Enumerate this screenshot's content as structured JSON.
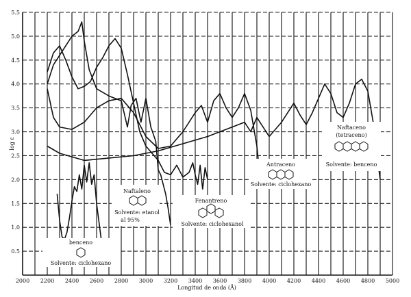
{
  "chart_data": {
    "type": "line",
    "xlabel": "Longitud de onda (Å)",
    "ylabel": "log ε",
    "xlim": [
      2000,
      5000
    ],
    "ylim": [
      0,
      5.5
    ],
    "x_ticks": [
      "2000",
      "2200",
      "2400",
      "2600",
      "2800",
      "3000",
      "3200",
      "3400",
      "3600",
      "3800",
      "4000",
      "4200",
      "4400",
      "4600",
      "4800",
      "5000"
    ],
    "y_ticks": [
      "0.5",
      "1.0",
      "1.5",
      "2.0",
      "2.5",
      "3.0",
      "3.5",
      "4.0",
      "4.5",
      "5.0",
      "5.5"
    ],
    "grid": true,
    "series": [
      {
        "name": "benceno",
        "points": [
          [
            2280,
            1.7
          ],
          [
            2300,
            1.15
          ],
          [
            2320,
            0.8
          ],
          [
            2340,
            0.75
          ],
          [
            2360,
            0.9
          ],
          [
            2380,
            1.2
          ],
          [
            2400,
            1.55
          ],
          [
            2420,
            1.85
          ],
          [
            2440,
            1.75
          ],
          [
            2460,
            2.1
          ],
          [
            2480,
            1.8
          ],
          [
            2500,
            2.3
          ],
          [
            2520,
            1.95
          ],
          [
            2540,
            2.35
          ],
          [
            2560,
            1.9
          ],
          [
            2580,
            2.1
          ],
          [
            2600,
            1.5
          ],
          [
            2620,
            1.1
          ],
          [
            2640,
            0.7
          ],
          [
            2660,
            0.4
          ]
        ]
      },
      {
        "name": "Naftaleno",
        "points": [
          [
            2200,
            4.0
          ],
          [
            2250,
            4.4
          ],
          [
            2300,
            4.6
          ],
          [
            2400,
            5.0
          ],
          [
            2450,
            5.1
          ],
          [
            2480,
            5.3
          ],
          [
            2500,
            4.9
          ],
          [
            2540,
            4.3
          ],
          [
            2600,
            3.9
          ],
          [
            2700,
            3.75
          ],
          [
            2800,
            3.65
          ],
          [
            2850,
            3.1
          ],
          [
            2880,
            3.55
          ],
          [
            2920,
            3.7
          ],
          [
            2960,
            3.2
          ],
          [
            3000,
            3.7
          ],
          [
            3040,
            3.1
          ],
          [
            3080,
            2.8
          ],
          [
            3100,
            2.2
          ],
          [
            3120,
            2.1
          ],
          [
            3140,
            1.9
          ],
          [
            3160,
            1.7
          ],
          [
            3180,
            1.4
          ],
          [
            3200,
            1.05
          ]
        ]
      },
      {
        "name": "Fenantreno",
        "points": [
          [
            2200,
            4.25
          ],
          [
            2250,
            4.65
          ],
          [
            2300,
            4.8
          ],
          [
            2350,
            4.5
          ],
          [
            2400,
            4.15
          ],
          [
            2450,
            3.9
          ],
          [
            2500,
            3.95
          ],
          [
            2550,
            4.05
          ],
          [
            2600,
            4.35
          ],
          [
            2650,
            4.55
          ],
          [
            2700,
            4.8
          ],
          [
            2750,
            4.95
          ],
          [
            2800,
            4.75
          ],
          [
            2850,
            4.2
          ],
          [
            2900,
            3.6
          ],
          [
            2950,
            3.0
          ],
          [
            3000,
            2.7
          ],
          [
            3050,
            2.55
          ],
          [
            3100,
            2.4
          ],
          [
            3150,
            2.15
          ],
          [
            3200,
            2.1
          ],
          [
            3250,
            2.3
          ],
          [
            3300,
            2.05
          ],
          [
            3350,
            2.15
          ],
          [
            3380,
            2.35
          ],
          [
            3400,
            2.1
          ],
          [
            3420,
            1.9
          ],
          [
            3440,
            2.3
          ],
          [
            3460,
            1.8
          ],
          [
            3480,
            2.25
          ],
          [
            3500,
            2.0
          ]
        ]
      },
      {
        "name": "Antraceno",
        "points": [
          [
            2200,
            3.9
          ],
          [
            2250,
            3.3
          ],
          [
            2300,
            3.1
          ],
          [
            2400,
            3.05
          ],
          [
            2500,
            3.2
          ],
          [
            2600,
            3.5
          ],
          [
            2700,
            3.65
          ],
          [
            2800,
            3.7
          ],
          [
            2900,
            3.4
          ],
          [
            3000,
            2.9
          ],
          [
            3100,
            2.65
          ],
          [
            3200,
            2.7
          ],
          [
            3300,
            3.0
          ],
          [
            3400,
            3.4
          ],
          [
            3450,
            3.55
          ],
          [
            3500,
            3.2
          ],
          [
            3550,
            3.65
          ],
          [
            3600,
            3.8
          ],
          [
            3650,
            3.5
          ],
          [
            3700,
            3.3
          ],
          [
            3750,
            3.5
          ],
          [
            3800,
            3.8
          ],
          [
            3850,
            3.45
          ],
          [
            3900,
            2.7
          ],
          [
            3920,
            2.2
          ]
        ]
      },
      {
        "name": "Naftaceno (tetraceno)",
        "points": [
          [
            2200,
            2.7
          ],
          [
            2300,
            2.55
          ],
          [
            2500,
            2.4
          ],
          [
            2700,
            2.45
          ],
          [
            2900,
            2.5
          ],
          [
            3100,
            2.6
          ],
          [
            3300,
            2.75
          ],
          [
            3500,
            2.9
          ],
          [
            3700,
            3.1
          ],
          [
            3800,
            3.2
          ],
          [
            3850,
            3.0
          ],
          [
            3900,
            3.3
          ],
          [
            3950,
            3.1
          ],
          [
            4000,
            2.9
          ],
          [
            4100,
            3.2
          ],
          [
            4200,
            3.6
          ],
          [
            4250,
            3.35
          ],
          [
            4300,
            3.15
          ],
          [
            4350,
            3.4
          ],
          [
            4400,
            3.7
          ],
          [
            4450,
            4.0
          ],
          [
            4500,
            3.8
          ],
          [
            4550,
            3.4
          ],
          [
            4600,
            3.3
          ],
          [
            4650,
            3.6
          ],
          [
            4700,
            4.0
          ],
          [
            4750,
            4.1
          ],
          [
            4800,
            3.85
          ],
          [
            4850,
            3.1
          ],
          [
            4880,
            2.4
          ],
          [
            4900,
            2.0
          ]
        ]
      }
    ],
    "annotations": {
      "benceno": {
        "title": "benceno",
        "solvent": "Solvente: ciclohexano"
      },
      "naftaleno": {
        "title": "Naftaleno",
        "solvent_line1": "Solvente: etanol",
        "solvent_line2": "al 95%"
      },
      "fenantreno": {
        "title": "Fenantreno",
        "solvent": "Solvente: ciclohexanol"
      },
      "antraceno": {
        "title": "Antraceno",
        "solvent": "Solvente: ciclohexano"
      },
      "naftaceno": {
        "title_line1": "Naftaceno",
        "title_line2": "(tetraceno)",
        "solvent": "Solvente: benceno"
      }
    }
  }
}
